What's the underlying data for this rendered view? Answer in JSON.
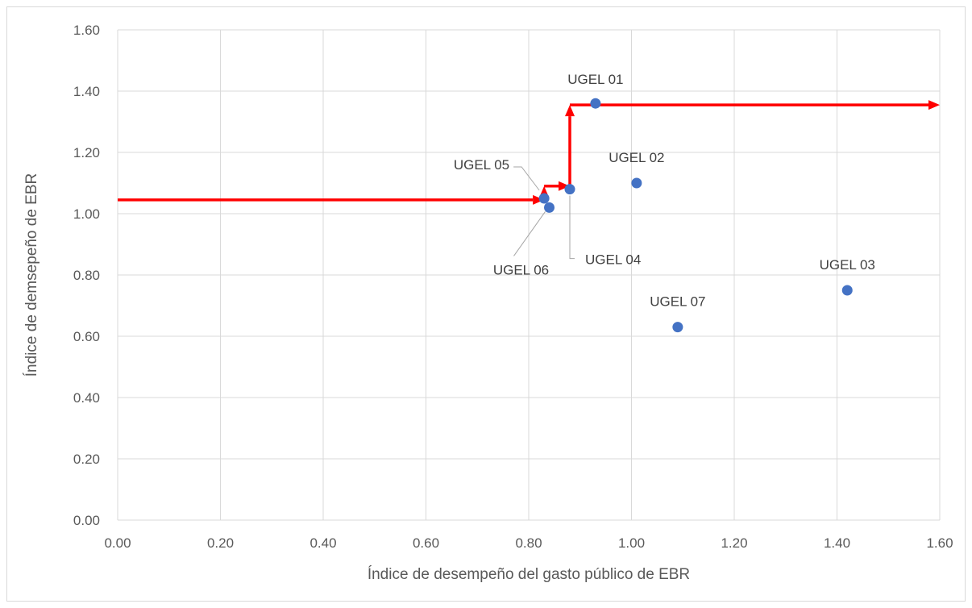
{
  "chart_data": {
    "type": "scatter",
    "xlabel": "Índice de desempeño  del gasto público de EBR",
    "ylabel": "Índice de demsepeño de EBR",
    "xlim": [
      0,
      1.6
    ],
    "ylim": [
      0,
      1.6
    ],
    "x_ticks": [
      "0.00",
      "0.20",
      "0.40",
      "0.60",
      "0.80",
      "1.00",
      "1.20",
      "1.40",
      "1.60"
    ],
    "y_ticks": [
      "0.00",
      "0.20",
      "0.40",
      "0.60",
      "0.80",
      "1.00",
      "1.20",
      "1.40",
      "1.60"
    ],
    "grid": true,
    "marker_color": "#4472c4",
    "points": [
      {
        "label": "UGEL 01",
        "x": 0.93,
        "y": 1.36
      },
      {
        "label": "UGEL 02",
        "x": 1.01,
        "y": 1.1
      },
      {
        "label": "UGEL 03",
        "x": 1.42,
        "y": 0.75
      },
      {
        "label": "UGEL 04",
        "x": 0.88,
        "y": 1.08
      },
      {
        "label": "UGEL 05",
        "x": 0.83,
        "y": 1.05
      },
      {
        "label": "UGEL 06",
        "x": 0.84,
        "y": 1.02
      },
      {
        "label": "UGEL 07",
        "x": 1.09,
        "y": 0.63
      }
    ],
    "frontier": {
      "color": "#ff0000",
      "path": [
        [
          0,
          1.045
        ],
        [
          0.83,
          1.045
        ],
        [
          0.83,
          1.09
        ],
        [
          0.88,
          1.09
        ],
        [
          0.88,
          1.355
        ],
        [
          1.6,
          1.355
        ]
      ]
    }
  }
}
